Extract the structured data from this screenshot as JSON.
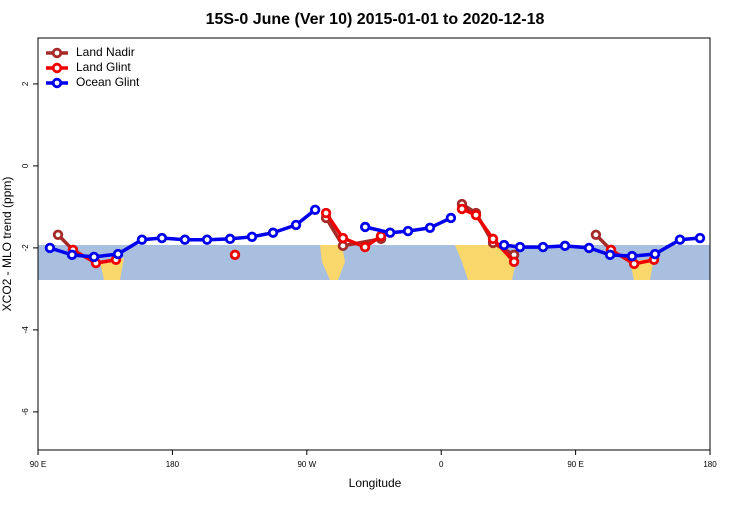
{
  "chart_data": {
    "type": "line",
    "title": "15S-0 June (Ver 10)   2015-01-01 to 2020-12-18",
    "x_label": "Longitude",
    "y_label": "XCO2 - MLO trend (ppm)",
    "xlim": [
      90,
      540
    ],
    "xticks": [
      {
        "value": 90,
        "label": "90 E"
      },
      180,
      {
        "value": 270,
        "label": "90 W"
      },
      {
        "value": 360,
        "label": "0"
      },
      {
        "value": 450,
        "label": "90 E"
      },
      {
        "value": 540,
        "label": "180"
      }
    ],
    "ylim": [
      -6.93,
      3.12
    ],
    "yticks": [
      2,
      0,
      -2,
      -4,
      -6
    ],
    "legend": "top-left",
    "series": [
      {
        "name": "Land Nadir",
        "color": "#a52a2a",
        "x": [
          103.4,
          113.4,
          null,
          282.9,
          294.2,
          319.7,
          null,
          373.9,
          383.3,
          394.7,
          408.8,
          null,
          463.6,
          473.7
        ],
        "values": [
          -1.68,
          -2.05,
          null,
          -1.27,
          -1.95,
          -1.78,
          null,
          -0.93,
          -1.15,
          -1.88,
          -2.17,
          null,
          -1.68,
          -2.05
        ]
      },
      {
        "name": "Land Glint",
        "color": "#ee0000",
        "x": [
          113.4,
          128.8,
          142.2,
          null,
          221.9,
          null,
          282.9,
          294.2,
          309.0,
          319.7,
          null,
          373.9,
          383.3,
          394.7,
          408.8,
          null,
          473.7,
          489.2,
          502.5
        ],
        "values": [
          -2.05,
          -2.37,
          -2.29,
          null,
          -2.17,
          null,
          -1.15,
          -1.76,
          -1.98,
          -1.71,
          null,
          -1.05,
          -1.2,
          -1.78,
          -2.34,
          null,
          -2.05,
          -2.39,
          -2.29
        ]
      },
      {
        "name": "Ocean Glint",
        "color": "#0000ee",
        "x": [
          98.0,
          112.8,
          127.5,
          143.6,
          159.6,
          173.0,
          188.4,
          203.2,
          218.6,
          233.3,
          247.4,
          262.8,
          275.6,
          null,
          309.1,
          325.8,
          337.8,
          352.5,
          366.5,
          null,
          402.1,
          412.8,
          428.2,
          442.9,
          459.0,
          473.1,
          487.8,
          503.2,
          519.9,
          533.3
        ],
        "values": [
          -2.0,
          -2.17,
          -2.22,
          -2.15,
          -1.8,
          -1.76,
          -1.8,
          -1.8,
          -1.78,
          -1.73,
          -1.63,
          -1.44,
          -1.07,
          null,
          -1.49,
          -1.63,
          -1.59,
          -1.51,
          -1.27,
          null,
          -1.93,
          -1.98,
          -1.98,
          -1.95,
          -2.0,
          -2.17,
          -2.2,
          -2.15,
          -1.8,
          -1.76
        ]
      }
    ]
  }
}
